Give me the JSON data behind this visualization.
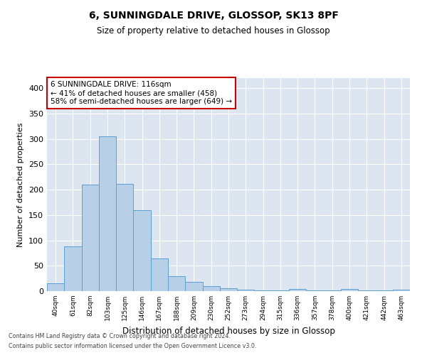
{
  "title1": "6, SUNNINGDALE DRIVE, GLOSSOP, SK13 8PF",
  "title2": "Size of property relative to detached houses in Glossop",
  "xlabel": "Distribution of detached houses by size in Glossop",
  "ylabel": "Number of detached properties",
  "categories": [
    "40sqm",
    "61sqm",
    "82sqm",
    "103sqm",
    "125sqm",
    "146sqm",
    "167sqm",
    "188sqm",
    "209sqm",
    "230sqm",
    "252sqm",
    "273sqm",
    "294sqm",
    "315sqm",
    "336sqm",
    "357sqm",
    "378sqm",
    "400sqm",
    "421sqm",
    "442sqm",
    "463sqm"
  ],
  "values": [
    15,
    88,
    210,
    305,
    212,
    160,
    64,
    30,
    18,
    10,
    6,
    3,
    2,
    1,
    4,
    1,
    1,
    4,
    1,
    1,
    3
  ],
  "bar_color": "#b8cfe8",
  "bar_edge_color": "#5a9fd4",
  "bg_color": "#dde6f0",
  "grid_color": "#ffffff",
  "annotation_text": "6 SUNNINGDALE DRIVE: 116sqm\n← 41% of detached houses are smaller (458)\n58% of semi-detached houses are larger (649) →",
  "annotation_box_color": "#ffffff",
  "annotation_box_edge": "#cc0000",
  "ylim": [
    0,
    420
  ],
  "yticks": [
    0,
    50,
    100,
    150,
    200,
    250,
    300,
    350,
    400
  ],
  "footer1": "Contains HM Land Registry data © Crown copyright and database right 2024.",
  "footer2": "Contains public sector information licensed under the Open Government Licence v3.0."
}
